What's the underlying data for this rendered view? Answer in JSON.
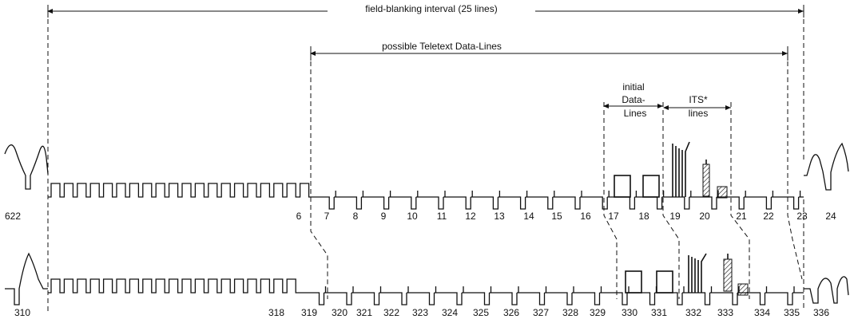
{
  "intervals": {
    "field_blanking": "field-blanking interval (25 lines)",
    "teletext": "possible Teletext Data-Lines",
    "initial_data_lines": [
      "initial",
      "Data-",
      "Lines"
    ],
    "its_lines": [
      "ITS*",
      "lines"
    ]
  },
  "field1_lines": [
    "622",
    "6",
    "7",
    "8",
    "9",
    "10",
    "11",
    "12",
    "13",
    "14",
    "15",
    "16",
    "17",
    "18",
    "19",
    "20",
    "21",
    "22",
    "23",
    "24"
  ],
  "field2_lines": [
    "310",
    "318",
    "319",
    "320",
    "321",
    "322",
    "323",
    "324",
    "325",
    "326",
    "327",
    "328",
    "329",
    "330",
    "331",
    "332",
    "333",
    "334",
    "335",
    "336"
  ]
}
